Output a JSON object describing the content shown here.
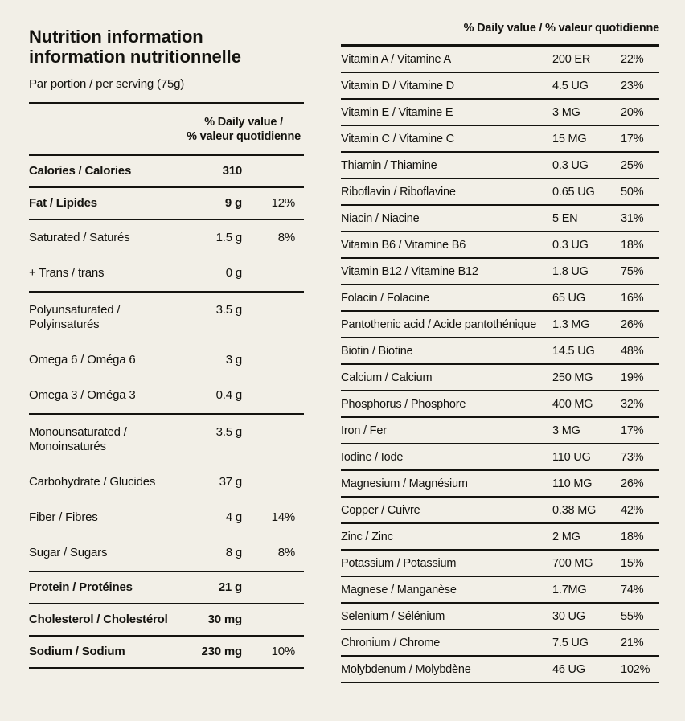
{
  "meta": {
    "background_color": "#f2efe7",
    "ink_color": "#14130f"
  },
  "header": {
    "title_line1": "Nutrition information",
    "title_line2": "information nutritionnelle",
    "serving": "Par portion / per serving (75g)"
  },
  "left_table": {
    "dv_line1": "% Daily value /",
    "dv_line2": "% valeur quotidienne",
    "rows": [
      {
        "label": "Calories / Calories",
        "amount": "310",
        "percent": "",
        "bold": true,
        "group_end": true
      },
      {
        "label": "Fat / Lipides",
        "amount": "9 g",
        "percent": "12%",
        "bold": true,
        "group_end": true
      },
      {
        "label": "Saturated / Saturés",
        "amount": "1.5 g",
        "percent": "8%"
      },
      {
        "label": "+ Trans / trans",
        "amount": "0 g",
        "percent": "",
        "group_end": true
      },
      {
        "label": "Polyunsaturated / Polyinsaturés",
        "amount": "3.5 g",
        "percent": ""
      },
      {
        "label": "Omega 6 / Oméga 6",
        "amount": "3 g",
        "percent": ""
      },
      {
        "label": "Omega 3 / Oméga 3",
        "amount": "0.4 g",
        "percent": "",
        "group_end": true
      },
      {
        "label": "Monounsaturated / Monoinsaturés",
        "amount": "3.5 g",
        "percent": ""
      },
      {
        "label": "Carbohydrate / Glucides",
        "amount": "37 g",
        "percent": ""
      },
      {
        "label": "Fiber / Fibres",
        "amount": "4 g",
        "percent": "14%"
      },
      {
        "label": "Sugar / Sugars",
        "amount": "8 g",
        "percent": "8%",
        "group_end": true
      },
      {
        "label": "Protein / Protéines",
        "amount": "21 g",
        "percent": "",
        "bold": true,
        "group_end": true
      },
      {
        "label": "Cholesterol / Cholestérol",
        "amount": "30 mg",
        "percent": "",
        "bold": true,
        "group_end": true
      },
      {
        "label": "Sodium / Sodium",
        "amount": "230 mg",
        "percent": "10%",
        "bold": true,
        "group_end": true
      }
    ]
  },
  "right_table": {
    "dv_header": "% Daily value / % valeur quotidienne",
    "rows": [
      {
        "label": "Vitamin A / Vitamine A",
        "amount": "200 ER",
        "percent": "22%"
      },
      {
        "label": "Vitamin D / Vitamine D",
        "amount": "4.5 UG",
        "percent": "23%"
      },
      {
        "label": "Vitamin E / Vitamine E",
        "amount": "3 MG",
        "percent": "20%"
      },
      {
        "label": "Vitamin C / Vitamine C",
        "amount": "15 MG",
        "percent": "17%"
      },
      {
        "label": "Thiamin / Thiamine",
        "amount": "0.3 UG",
        "percent": "25%"
      },
      {
        "label": "Riboflavin / Riboflavine",
        "amount": "0.65 UG",
        "percent": "50%"
      },
      {
        "label": "Niacin / Niacine",
        "amount": "5 EN",
        "percent": "31%"
      },
      {
        "label": "Vitamin B6 / Vitamine B6",
        "amount": "0.3 UG",
        "percent": "18%"
      },
      {
        "label": "Vitamin B12 / Vitamine B12",
        "amount": "1.8 UG",
        "percent": "75%"
      },
      {
        "label": "Folacin / Folacine",
        "amount": "65 UG",
        "percent": "16%"
      },
      {
        "label": "Pantothenic acid / Acide pantothénique",
        "amount": "1.3 MG",
        "percent": "26%"
      },
      {
        "label": "Biotin / Biotine",
        "amount": "14.5 UG",
        "percent": "48%"
      },
      {
        "label": "Calcium / Calcium",
        "amount": "250 MG",
        "percent": "19%"
      },
      {
        "label": "Phosphorus / Phosphore",
        "amount": "400 MG",
        "percent": "32%"
      },
      {
        "label": "Iron / Fer",
        "amount": "3 MG",
        "percent": "17%"
      },
      {
        "label": "Iodine / Iode",
        "amount": "110 UG",
        "percent": "73%"
      },
      {
        "label": "Magnesium / Magnésium",
        "amount": "110 MG",
        "percent": "26%"
      },
      {
        "label": "Copper / Cuivre",
        "amount": "0.38 MG",
        "percent": "42%"
      },
      {
        "label": "Zinc / Zinc",
        "amount": "2 MG",
        "percent": "18%"
      },
      {
        "label": "Potassium / Potassium",
        "amount": "700 MG",
        "percent": "15%"
      },
      {
        "label": "Magnese / Manganèse",
        "amount": "1.7MG",
        "percent": "74%"
      },
      {
        "label": "Selenium / Sélénium",
        "amount": "30 UG",
        "percent": "55%"
      },
      {
        "label": "Chronium / Chrome",
        "amount": "7.5 UG",
        "percent": "21%"
      },
      {
        "label": "Molybdenum / Molybdène",
        "amount": "46 UG",
        "percent": "102%"
      }
    ]
  }
}
